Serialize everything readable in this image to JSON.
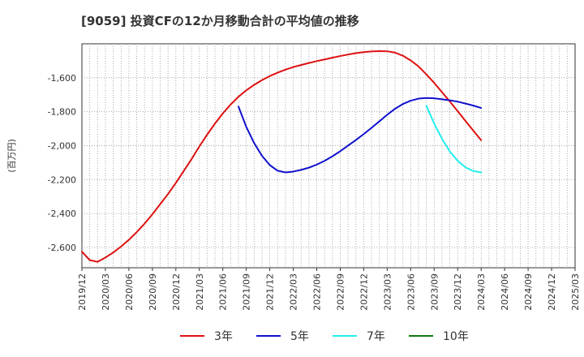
{
  "chart_data": {
    "type": "line",
    "title": "[9059]  投資CFの12か月移動合計の平均値の推移",
    "ylabel": "(百万円)",
    "xlabel": "",
    "ylim": [
      -2720,
      -1400
    ],
    "yticks": [
      -2600,
      -2400,
      -2200,
      -2000,
      -1800,
      -1600
    ],
    "ytick_labels": [
      "-2,600",
      "-2,400",
      "-2,200",
      "-2,000",
      "-1,800",
      "-1,600"
    ],
    "xrange": [
      "2019-12",
      "2025-03"
    ],
    "xtick_labels": [
      "2019/12",
      "2020/03",
      "2020/06",
      "2020/09",
      "2020/12",
      "2021/03",
      "2021/06",
      "2021/09",
      "2021/12",
      "2022/03",
      "2022/06",
      "2022/09",
      "2022/12",
      "2023/03",
      "2023/06",
      "2023/09",
      "2023/12",
      "2024/03",
      "2024/06",
      "2024/09",
      "2024/12",
      "2025/03"
    ],
    "grid": true,
    "legend_position": "bottom",
    "series": [
      {
        "name": "3年",
        "color": "#dd1111",
        "x": [
          "2019-12",
          "2020-01",
          "2020-02",
          "2020-03",
          "2020-04",
          "2020-05",
          "2020-06",
          "2020-07",
          "2020-08",
          "2020-09",
          "2020-10",
          "2020-11",
          "2020-12",
          "2021-01",
          "2021-02",
          "2021-03",
          "2021-04",
          "2021-05",
          "2021-06",
          "2021-07",
          "2021-08",
          "2021-09",
          "2021-10",
          "2021-11",
          "2021-12",
          "2022-01",
          "2022-02",
          "2022-03",
          "2022-04",
          "2022-05",
          "2022-06",
          "2022-07",
          "2022-08",
          "2022-09",
          "2022-10",
          "2022-11",
          "2022-12",
          "2023-01",
          "2023-02",
          "2023-03",
          "2023-04",
          "2023-05",
          "2023-06",
          "2023-07",
          "2023-08",
          "2023-09",
          "2023-10",
          "2023-11",
          "2023-12",
          "2024-01",
          "2024-02",
          "2024-03"
        ],
        "values": [
          -2625,
          -2675,
          -2685,
          -2660,
          -2630,
          -2595,
          -2555,
          -2510,
          -2460,
          -2405,
          -2345,
          -2285,
          -2220,
          -2150,
          -2080,
          -2005,
          -1935,
          -1870,
          -1810,
          -1758,
          -1712,
          -1674,
          -1642,
          -1614,
          -1590,
          -1570,
          -1552,
          -1537,
          -1525,
          -1513,
          -1502,
          -1492,
          -1482,
          -1472,
          -1463,
          -1455,
          -1449,
          -1445,
          -1443,
          -1444,
          -1452,
          -1470,
          -1498,
          -1533,
          -1580,
          -1630,
          -1685,
          -1740,
          -1797,
          -1855,
          -1912,
          -1968
        ]
      },
      {
        "name": "5年",
        "color": "#1111cc",
        "x": [
          "2021-08",
          "2021-09",
          "2021-10",
          "2021-11",
          "2021-12",
          "2022-01",
          "2022-02",
          "2022-03",
          "2022-04",
          "2022-05",
          "2022-06",
          "2022-07",
          "2022-08",
          "2022-09",
          "2022-10",
          "2022-11",
          "2022-12",
          "2023-01",
          "2023-02",
          "2023-03",
          "2023-04",
          "2023-05",
          "2023-06",
          "2023-07",
          "2023-08",
          "2023-09",
          "2023-10",
          "2023-11",
          "2023-12",
          "2024-01",
          "2024-02",
          "2024-03"
        ],
        "values": [
          -1770,
          -1890,
          -1985,
          -2060,
          -2115,
          -2148,
          -2158,
          -2153,
          -2143,
          -2130,
          -2112,
          -2090,
          -2063,
          -2033,
          -2000,
          -1967,
          -1932,
          -1895,
          -1857,
          -1818,
          -1783,
          -1755,
          -1735,
          -1723,
          -1719,
          -1721,
          -1727,
          -1733,
          -1741,
          -1752,
          -1764,
          -1778
        ]
      },
      {
        "name": "7年",
        "color": "#22eeee",
        "x": [
          "2023-08",
          "2023-09",
          "2023-10",
          "2023-11",
          "2023-12",
          "2024-01",
          "2024-02",
          "2024-03"
        ],
        "values": [
          -1765,
          -1870,
          -1960,
          -2035,
          -2090,
          -2128,
          -2150,
          -2158
        ]
      },
      {
        "name": "10年",
        "color": "#117711",
        "x": [],
        "values": []
      }
    ]
  }
}
